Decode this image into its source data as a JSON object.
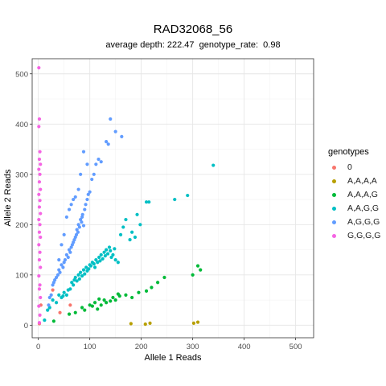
{
  "chart_data": {
    "type": "scatter",
    "title": "RAD32068_56",
    "subtitle": {
      "depth_label": "average depth:",
      "depth_value": "222.47",
      "rate_label": "genotype_rate:",
      "rate_value": "0.98"
    },
    "xlabel": "Allele 1 Reads",
    "ylabel": "Allele 2 Reads",
    "xlim": [
      -12,
      535
    ],
    "ylim": [
      -25,
      530
    ],
    "xticks": [
      0,
      100,
      200,
      300,
      400,
      500
    ],
    "yticks": [
      0,
      100,
      200,
      300,
      400,
      500
    ],
    "grid": true,
    "legend_title": "genotypes",
    "legend_position": "right",
    "series": [
      {
        "name": "0",
        "color": "#F8766D",
        "points": [
          [
            2,
            3
          ],
          [
            5,
            40
          ],
          [
            42,
            25
          ],
          [
            62,
            40
          ],
          [
            28,
            70
          ]
        ]
      },
      {
        "name": "A,A,A,A",
        "color": "#B79F00",
        "points": [
          [
            180,
            3
          ],
          [
            208,
            2
          ],
          [
            217,
            4
          ],
          [
            302,
            4
          ],
          [
            310,
            6
          ]
        ]
      },
      {
        "name": "A,A,A,G",
        "color": "#00BA38",
        "points": [
          [
            30,
            8
          ],
          [
            60,
            22
          ],
          [
            72,
            25
          ],
          [
            85,
            35
          ],
          [
            90,
            30
          ],
          [
            100,
            40
          ],
          [
            105,
            38
          ],
          [
            110,
            45
          ],
          [
            115,
            32
          ],
          [
            118,
            52
          ],
          [
            122,
            40
          ],
          [
            128,
            50
          ],
          [
            132,
            45
          ],
          [
            140,
            48
          ],
          [
            145,
            55
          ],
          [
            150,
            50
          ],
          [
            155,
            62
          ],
          [
            158,
            58
          ],
          [
            170,
            60
          ],
          [
            182,
            55
          ],
          [
            195,
            65
          ],
          [
            210,
            68
          ],
          [
            220,
            75
          ],
          [
            232,
            85
          ],
          [
            245,
            95
          ],
          [
            300,
            100
          ],
          [
            310,
            118
          ],
          [
            315,
            110
          ]
        ]
      },
      {
        "name": "A,A,G,G",
        "color": "#00BFC4",
        "points": [
          [
            12,
            10
          ],
          [
            18,
            30
          ],
          [
            22,
            35
          ],
          [
            28,
            50
          ],
          [
            35,
            45
          ],
          [
            40,
            60
          ],
          [
            45,
            55
          ],
          [
            48,
            58
          ],
          [
            50,
            65
          ],
          [
            55,
            60
          ],
          [
            58,
            70
          ],
          [
            62,
            72
          ],
          [
            65,
            85
          ],
          [
            68,
            80
          ],
          [
            70,
            90
          ],
          [
            72,
            95
          ],
          [
            75,
            88
          ],
          [
            78,
            100
          ],
          [
            80,
            92
          ],
          [
            82,
            105
          ],
          [
            85,
            98
          ],
          [
            88,
            110
          ],
          [
            90,
            102
          ],
          [
            93,
            115
          ],
          [
            95,
            108
          ],
          [
            98,
            112
          ],
          [
            100,
            120
          ],
          [
            102,
            118
          ],
          [
            105,
            125
          ],
          [
            108,
            122
          ],
          [
            110,
            115
          ],
          [
            112,
            130
          ],
          [
            115,
            125
          ],
          [
            118,
            135
          ],
          [
            120,
            128
          ],
          [
            122,
            140
          ],
          [
            125,
            132
          ],
          [
            128,
            145
          ],
          [
            130,
            138
          ],
          [
            132,
            150
          ],
          [
            135,
            142
          ],
          [
            138,
            155
          ],
          [
            140,
            148
          ],
          [
            142,
            135
          ],
          [
            145,
            140
          ],
          [
            148,
            152
          ],
          [
            150,
            130
          ],
          [
            155,
            125
          ],
          [
            160,
            180
          ],
          [
            165,
            195
          ],
          [
            170,
            210
          ],
          [
            178,
            170
          ],
          [
            182,
            185
          ],
          [
            188,
            175
          ],
          [
            192,
            220
          ],
          [
            198,
            200
          ],
          [
            210,
            245
          ],
          [
            215,
            245
          ],
          [
            265,
            250
          ],
          [
            290,
            258
          ],
          [
            340,
            318
          ]
        ]
      },
      {
        "name": "A,G,G,G",
        "color": "#619CFF",
        "points": [
          [
            20,
            40
          ],
          [
            22,
            55
          ],
          [
            25,
            60
          ],
          [
            28,
            80
          ],
          [
            30,
            85
          ],
          [
            32,
            90
          ],
          [
            35,
            95
          ],
          [
            38,
            100
          ],
          [
            40,
            110
          ],
          [
            42,
            105
          ],
          [
            45,
            120
          ],
          [
            48,
            115
          ],
          [
            50,
            125
          ],
          [
            52,
            130
          ],
          [
            55,
            140
          ],
          [
            58,
            135
          ],
          [
            60,
            150
          ],
          [
            62,
            145
          ],
          [
            64,
            155
          ],
          [
            66,
            160
          ],
          [
            68,
            165
          ],
          [
            70,
            170
          ],
          [
            72,
            175
          ],
          [
            74,
            180
          ],
          [
            75,
            190
          ],
          [
            77,
            185
          ],
          [
            78,
            200
          ],
          [
            80,
            195
          ],
          [
            82,
            210
          ],
          [
            84,
            205
          ],
          [
            85,
            215
          ],
          [
            86,
            220
          ],
          [
            88,
            198
          ],
          [
            90,
            230
          ],
          [
            92,
            240
          ],
          [
            95,
            250
          ],
          [
            97,
            260
          ],
          [
            100,
            265
          ],
          [
            104,
            290
          ],
          [
            108,
            300
          ],
          [
            112,
            320
          ],
          [
            117,
            330
          ],
          [
            122,
            325
          ],
          [
            132,
            365
          ],
          [
            136,
            360
          ],
          [
            140,
            410
          ],
          [
            150,
            385
          ],
          [
            162,
            375
          ],
          [
            55,
            215
          ],
          [
            60,
            230
          ],
          [
            64,
            240
          ],
          [
            68,
            250
          ],
          [
            72,
            255
          ],
          [
            78,
            270
          ],
          [
            82,
            300
          ],
          [
            88,
            345
          ],
          [
            95,
            320
          ],
          [
            50,
            180
          ],
          [
            45,
            160
          ],
          [
            40,
            130
          ]
        ]
      },
      {
        "name": "G,G,G,G",
        "color": "#F564E3",
        "points": [
          [
            2,
            5
          ],
          [
            3,
            20
          ],
          [
            1,
            38
          ],
          [
            4,
            55
          ],
          [
            2,
            72
          ],
          [
            3,
            80
          ],
          [
            1,
            98
          ],
          [
            4,
            115
          ],
          [
            2,
            130
          ],
          [
            3,
            145
          ],
          [
            1,
            160
          ],
          [
            4,
            175
          ],
          [
            2,
            185
          ],
          [
            3,
            200
          ],
          [
            1,
            210
          ],
          [
            4,
            222
          ],
          [
            2,
            235
          ],
          [
            3,
            248
          ],
          [
            1,
            260
          ],
          [
            4,
            270
          ],
          [
            2,
            285
          ],
          [
            3,
            300
          ],
          [
            1,
            310
          ],
          [
            4,
            320
          ],
          [
            2,
            330
          ],
          [
            3,
            345
          ],
          [
            1,
            395
          ],
          [
            2,
            410
          ],
          [
            1,
            512
          ]
        ]
      }
    ]
  }
}
